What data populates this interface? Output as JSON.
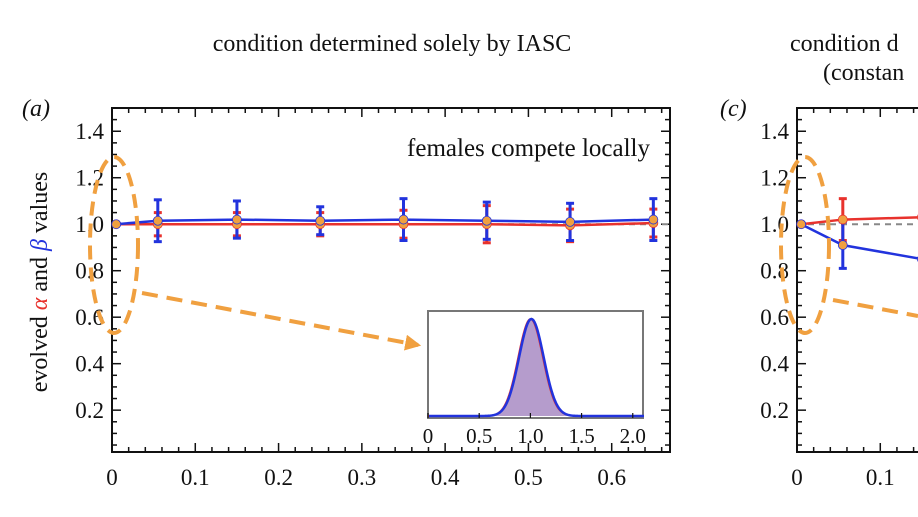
{
  "figure": {
    "panel_a_title": "condition determined solely by IASC",
    "panel_c_title_line1": "condition d",
    "panel_c_title_line2": "(constan",
    "panel_a_label": "(a)",
    "panel_c_label": "(c)",
    "ylabel_parts": [
      "evolved ",
      "α",
      " and ",
      "β",
      " values"
    ],
    "annotation": "females compete locally"
  },
  "colors": {
    "alpha": "#e8322d",
    "beta": "#2233dd",
    "marker": "#f0a040",
    "dashed_highlight": "#f0a040",
    "reference": "#888888",
    "inset_fill": "#b59ccc"
  },
  "chart_data": [
    {
      "type": "line",
      "panel": "a",
      "title": "condition determined solely by IASC",
      "ylabel": "evolved α and β values",
      "xlim": [
        0,
        0.67
      ],
      "ylim": [
        0.02,
        1.5
      ],
      "xticks": [
        0,
        0.1,
        0.2,
        0.3,
        0.4,
        0.5,
        0.6
      ],
      "xtick_labels": [
        "0",
        "0.1",
        "0.2",
        "0.3",
        "0.4",
        "0.5",
        "0.6"
      ],
      "yticks": [
        0.2,
        0.4,
        0.6,
        0.8,
        1.0,
        1.2,
        1.4
      ],
      "ytick_labels": [
        "0.2",
        "0.4",
        "0.6",
        "0.8",
        "1.0",
        "1.2",
        "1.4"
      ],
      "reference_line": 1.0,
      "x": [
        0.005,
        0.055,
        0.15,
        0.25,
        0.35,
        0.45,
        0.55,
        0.65
      ],
      "series": [
        {
          "name": "α",
          "values": [
            1.0,
            1.0,
            1.0,
            1.0,
            1.0,
            1.0,
            0.995,
            1.005
          ],
          "errors": [
            0.0,
            0.05,
            0.05,
            0.05,
            0.06,
            0.08,
            0.07,
            0.06
          ]
        },
        {
          "name": "β",
          "values": [
            1.0,
            1.015,
            1.02,
            1.015,
            1.02,
            1.015,
            1.01,
            1.02
          ],
          "errors": [
            0.0,
            0.09,
            0.08,
            0.06,
            0.09,
            0.08,
            0.08,
            0.09
          ]
        }
      ],
      "inset": {
        "type": "area",
        "xlim": [
          0,
          2.1
        ],
        "xticks": [
          0,
          0.5,
          1.0,
          1.5,
          2.0
        ],
        "xtick_labels": [
          "0",
          "0.5",
          "1.0",
          "1.5",
          "2.0"
        ],
        "peak_x": 1.0,
        "sigma": 0.12,
        "ymax": 1.0
      }
    },
    {
      "type": "line",
      "panel": "c",
      "xlim": [
        0,
        0.67
      ],
      "ylim": [
        0.02,
        1.5
      ],
      "xticks": [
        0,
        0.1
      ],
      "xtick_labels": [
        "0",
        "0.1"
      ],
      "yticks": [
        0.2,
        0.4,
        0.6,
        0.8,
        1.0,
        1.2,
        1.4
      ],
      "ytick_labels": [
        "0.2",
        "0.4",
        "0.6",
        "0.8",
        "1.0",
        "1.2",
        "1.4"
      ],
      "reference_line": 1.0,
      "x": [
        0.005,
        0.055,
        0.15
      ],
      "series": [
        {
          "name": "α",
          "values": [
            1.0,
            1.02,
            1.03
          ],
          "errors": [
            0.0,
            0.09,
            0.0
          ]
        },
        {
          "name": "β",
          "values": [
            1.0,
            0.91,
            0.85
          ],
          "errors": [
            0.0,
            0.1,
            0.0
          ]
        }
      ]
    }
  ]
}
